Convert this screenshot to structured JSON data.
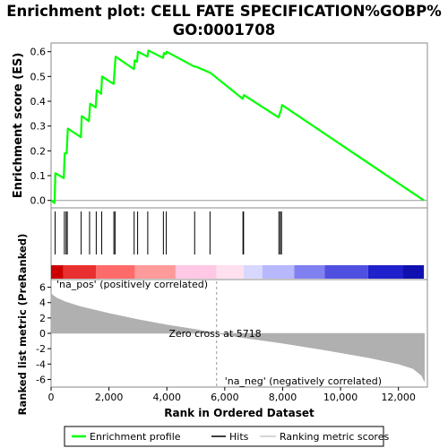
{
  "title_lines": [
    "Enrichment plot: CELL FATE SPECIFICATION%GOBP%",
    "GO:0001708"
  ],
  "chart_data": {
    "type": "line",
    "title": "Enrichment plot: CELL FATE SPECIFICATION%GOBP%GO:0001708",
    "x_range": [
      0,
      13000
    ],
    "x_ticks": [
      0,
      2000,
      4000,
      6000,
      8000,
      10000,
      12000
    ],
    "x_tick_labels": [
      "0",
      "2,000",
      "4,000",
      "6,000",
      "8,000",
      "10,000",
      "12,000"
    ],
    "xlabel": "Rank in Ordered Dataset",
    "es_panel": {
      "ylabel": "Enrichment score (ES)",
      "ylim": [
        -0.03,
        0.635
      ],
      "y_ticks": [
        0.0,
        0.1,
        0.2,
        0.3,
        0.4,
        0.5,
        0.6
      ],
      "y_tick_labels": [
        "0.0",
        "0.1",
        "0.2",
        "0.3",
        "0.4",
        "0.5",
        "0.6"
      ],
      "series_name": "Enrichment profile",
      "color": "#00ff00",
      "profile_x": [
        0,
        120,
        150,
        440,
        470,
        540,
        580,
        1030,
        1060,
        1310,
        1350,
        1540,
        1580,
        1730,
        1760,
        2160,
        2190,
        2230,
        2860,
        2890,
        2970,
        3000,
        3330,
        3360,
        3870,
        3900,
        3960,
        3990,
        4950,
        5000,
        5500,
        6620,
        6660,
        7860,
        7900,
        7950,
        7980,
        12880
      ],
      "profile_y": [
        0.0,
        -0.01,
        0.11,
        0.09,
        0.19,
        0.19,
        0.29,
        0.255,
        0.34,
        0.32,
        0.39,
        0.375,
        0.445,
        0.43,
        0.5,
        0.47,
        0.52,
        0.58,
        0.53,
        0.565,
        0.56,
        0.6,
        0.58,
        0.605,
        0.575,
        0.595,
        0.59,
        0.6,
        0.54,
        0.54,
        0.515,
        0.41,
        0.425,
        0.335,
        0.35,
        0.365,
        0.385,
        0.0
      ]
    },
    "hits_x": [
      140,
      460,
      520,
      560,
      1040,
      1330,
      1560,
      1750,
      2170,
      2210,
      2870,
      2990,
      3340,
      3880,
      3980,
      4960,
      5490,
      6630,
      6650,
      7870,
      7920,
      7960
    ],
    "rank_metric_panel": {
      "ylabel": "Ranked list metric (PreRanked)",
      "ylim": [
        -7,
        7
      ],
      "y_ticks": [
        -6,
        -4,
        -2,
        0,
        2,
        4,
        6
      ],
      "y_tick_labels": [
        "-6",
        "-4",
        "-2",
        "0",
        "2",
        "4",
        "6"
      ],
      "fill_color": "#b0b0b0",
      "metric_x": [
        0,
        50,
        200,
        500,
        1000,
        2000,
        3000,
        4000,
        5000,
        5718,
        6500,
        8000,
        9500,
        11000,
        12000,
        12500,
        12800,
        12900
      ],
      "metric_y": [
        5.3,
        5.0,
        4.6,
        4.1,
        3.5,
        2.6,
        1.8,
        1.1,
        0.5,
        0.0,
        -0.5,
        -1.3,
        -2.2,
        -3.2,
        -4.0,
        -4.6,
        -5.5,
        -6.3
      ]
    },
    "zero_cross_label": "Zero cross at 5718",
    "zero_cross_x": 5718,
    "pos_label": "'na_pos' (positively correlated)",
    "neg_label": "'na_neg' (negatively correlated)",
    "pos_label_color": "#cc0000",
    "neg_label_color": "#2222cc",
    "heat_bar_colors": [
      "#cc0000",
      "#e83030",
      "#ff6a6a",
      "#ff9a9a",
      "#ffc8e4",
      "#ffe0ef",
      "#d8d8ff",
      "#b8b8ff",
      "#8080f0",
      "#5050e0",
      "#2020cc",
      "#1010b0"
    ],
    "heat_bar_breaks": [
      0,
      420,
      1550,
      2900,
      4300,
      5718,
      6650,
      7300,
      8400,
      9450,
      10950,
      12150,
      12880
    ],
    "legend": [
      "Enrichment profile",
      "Hits",
      "Ranking metric scores"
    ],
    "legend_colors": [
      "#00ff00",
      "#000000",
      "#c8c8c8"
    ]
  }
}
